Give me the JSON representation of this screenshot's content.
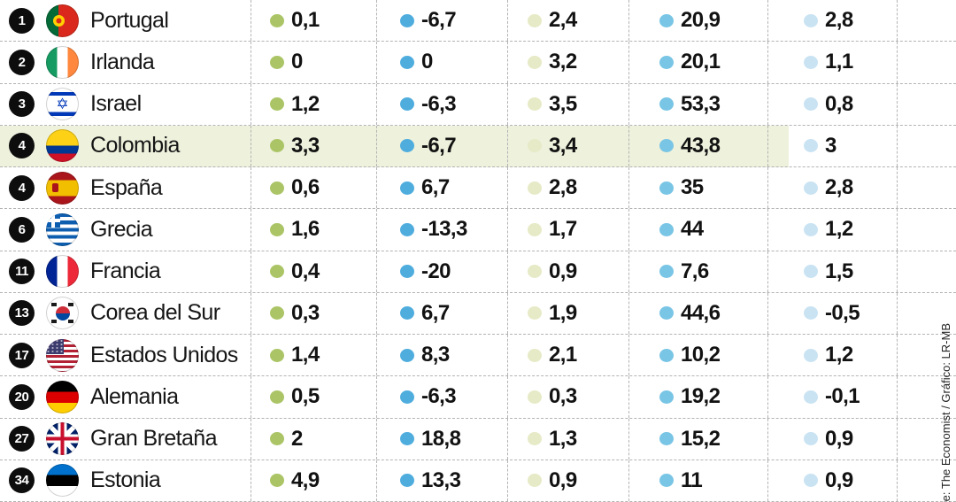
{
  "credit": "te: The Economist / Gráfico: LR-MB",
  "table": {
    "highlight_row_color": "#eef1dc",
    "rank_badge_color": "#0d0d0d",
    "divider_color": "#b3b3b3",
    "dot_colors": [
      "#abc566",
      "#4fadde",
      "#e7eac6",
      "#79c5e5",
      "#c9e3f3"
    ],
    "rows": [
      {
        "rank": "1",
        "country": "Portugal",
        "flag": "portugal",
        "values": [
          "0,1",
          "-6,7",
          "2,4",
          "20,9",
          "2,8"
        ],
        "highlighted": false
      },
      {
        "rank": "2",
        "country": "Irlanda",
        "flag": "ireland",
        "values": [
          "0",
          "0",
          "3,2",
          "20,1",
          "1,1"
        ],
        "highlighted": false
      },
      {
        "rank": "3",
        "country": "Israel",
        "flag": "israel",
        "values": [
          "1,2",
          "-6,3",
          "3,5",
          "53,3",
          "0,8"
        ],
        "highlighted": false
      },
      {
        "rank": "4",
        "country": "Colombia",
        "flag": "colombia",
        "values": [
          "3,3",
          "-6,7",
          "3,4",
          "43,8",
          "3"
        ],
        "highlighted": true
      },
      {
        "rank": "4",
        "country": "España",
        "flag": "spain",
        "values": [
          "0,6",
          "6,7",
          "2,8",
          "35",
          "2,8"
        ],
        "highlighted": false
      },
      {
        "rank": "6",
        "country": "Grecia",
        "flag": "greece",
        "values": [
          "1,6",
          "-13,3",
          "1,7",
          "44",
          "1,2"
        ],
        "highlighted": false
      },
      {
        "rank": "11",
        "country": "Francia",
        "flag": "france",
        "values": [
          "0,4",
          "-20",
          "0,9",
          "7,6",
          "1,5"
        ],
        "highlighted": false
      },
      {
        "rank": "13",
        "country": "Corea del Sur",
        "flag": "southkorea",
        "values": [
          "0,3",
          "6,7",
          "1,9",
          "44,6",
          "-0,5"
        ],
        "highlighted": false
      },
      {
        "rank": "17",
        "country": "Estados Unidos",
        "flag": "usa",
        "values": [
          "1,4",
          "8,3",
          "2,1",
          "10,2",
          "1,2"
        ],
        "highlighted": false
      },
      {
        "rank": "20",
        "country": "Alemania",
        "flag": "germany",
        "values": [
          "0,5",
          "-6,3",
          "0,3",
          "19,2",
          "-0,1"
        ],
        "highlighted": false
      },
      {
        "rank": "27",
        "country": "Gran Bretaña",
        "flag": "uk",
        "values": [
          "2",
          "18,8",
          "1,3",
          "15,2",
          "0,9"
        ],
        "highlighted": false
      },
      {
        "rank": "34",
        "country": "Estonia",
        "flag": "estonia",
        "values": [
          "4,9",
          "13,3",
          "0,9",
          "11",
          "0,9"
        ],
        "highlighted": false
      }
    ]
  },
  "chart_data": {
    "type": "table",
    "columns": [
      "rank",
      "country",
      "metric_1",
      "metric_2",
      "metric_3",
      "metric_4",
      "metric_5"
    ],
    "rows": [
      [
        1,
        "Portugal",
        0.1,
        -6.7,
        2.4,
        20.9,
        2.8
      ],
      [
        2,
        "Irlanda",
        0,
        0,
        3.2,
        20.1,
        1.1
      ],
      [
        3,
        "Israel",
        1.2,
        -6.3,
        3.5,
        53.3,
        0.8
      ],
      [
        4,
        "Colombia",
        3.3,
        -6.7,
        3.4,
        43.8,
        3
      ],
      [
        4,
        "España",
        0.6,
        6.7,
        2.8,
        35,
        2.8
      ],
      [
        6,
        "Grecia",
        1.6,
        -13.3,
        1.7,
        44,
        1.2
      ],
      [
        11,
        "Francia",
        0.4,
        -20,
        0.9,
        7.6,
        1.5
      ],
      [
        13,
        "Corea del Sur",
        0.3,
        6.7,
        1.9,
        44.6,
        -0.5
      ],
      [
        17,
        "Estados Unidos",
        1.4,
        8.3,
        2.1,
        10.2,
        1.2
      ],
      [
        20,
        "Alemania",
        0.5,
        -6.3,
        0.3,
        19.2,
        -0.1
      ],
      [
        27,
        "Gran Bretaña",
        2,
        18.8,
        1.3,
        15.2,
        0.9
      ],
      [
        34,
        "Estonia",
        4.9,
        13.3,
        0.9,
        11,
        0.9
      ]
    ],
    "highlighted_row": "Colombia",
    "legend_position": "none",
    "grid": "dashed"
  }
}
